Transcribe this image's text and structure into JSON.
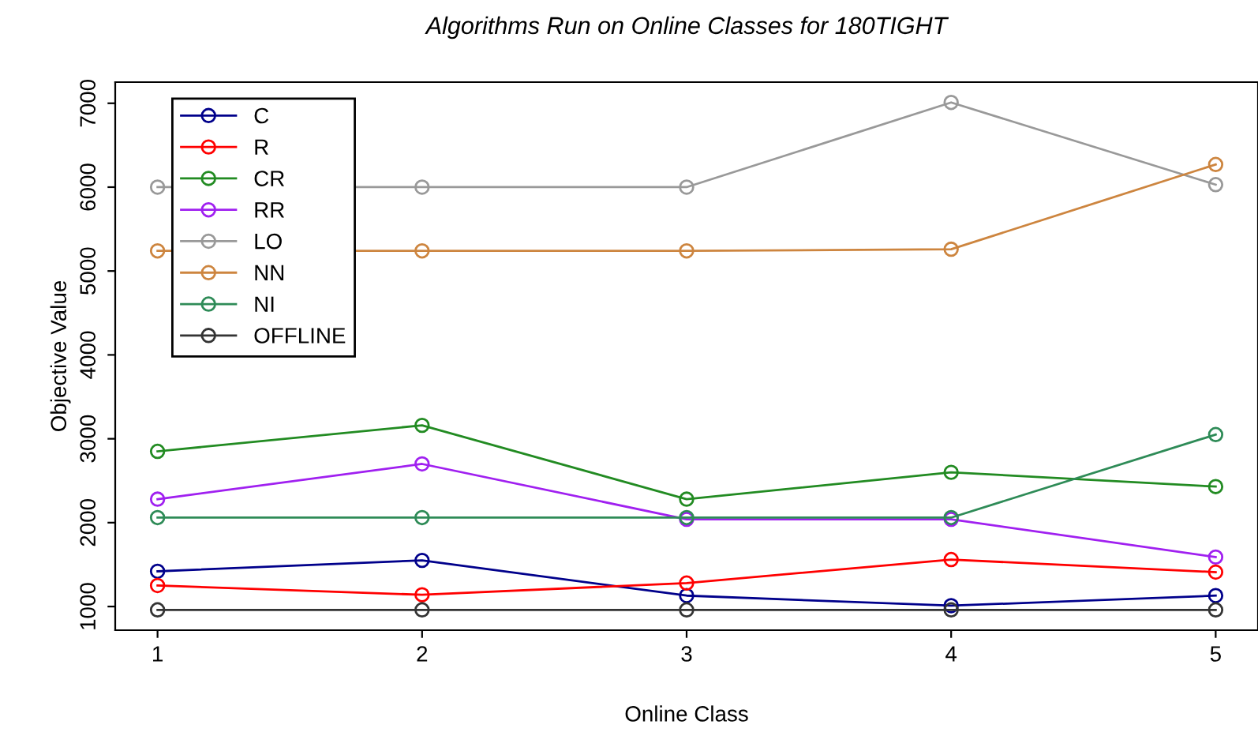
{
  "chart_data": {
    "type": "line",
    "title": "Algorithms Run on Online Classes for 180TIGHT",
    "xlabel": "Online Class",
    "ylabel": "Objective Value",
    "x": [
      1,
      2,
      3,
      4,
      5
    ],
    "xlim": [
      0.84,
      5.16
    ],
    "xticks": [
      1,
      2,
      3,
      4,
      5
    ],
    "ylim": [
      718,
      7252
    ],
    "yticks": [
      1000,
      2000,
      3000,
      4000,
      5000,
      6000,
      7000
    ],
    "marker": "circle",
    "line_style": "solid",
    "grid": false,
    "legend": "top left",
    "series": [
      {
        "name": "C",
        "color": "#00008b",
        "values": [
          1420,
          1550,
          1130,
          1010,
          1130
        ]
      },
      {
        "name": "R",
        "color": "#ff0000",
        "values": [
          1250,
          1140,
          1280,
          1560,
          1410
        ]
      },
      {
        "name": "CR",
        "color": "#228b22",
        "values": [
          2850,
          3160,
          2280,
          2600,
          2430
        ]
      },
      {
        "name": "RR",
        "color": "#a020f0",
        "values": [
          2280,
          2700,
          2040,
          2040,
          1590
        ]
      },
      {
        "name": "LO",
        "color": "#999999",
        "values": [
          6000,
          6000,
          6000,
          7010,
          6030
        ]
      },
      {
        "name": "NN",
        "color": "#cd853f",
        "values": [
          5240,
          5240,
          5240,
          5260,
          6270
        ]
      },
      {
        "name": "NI",
        "color": "#2e8b57",
        "values": [
          2060,
          2060,
          2060,
          2060,
          3050
        ]
      },
      {
        "name": "OFFLINE",
        "color": "#333333",
        "values": [
          960,
          960,
          960,
          960,
          960
        ]
      }
    ]
  }
}
